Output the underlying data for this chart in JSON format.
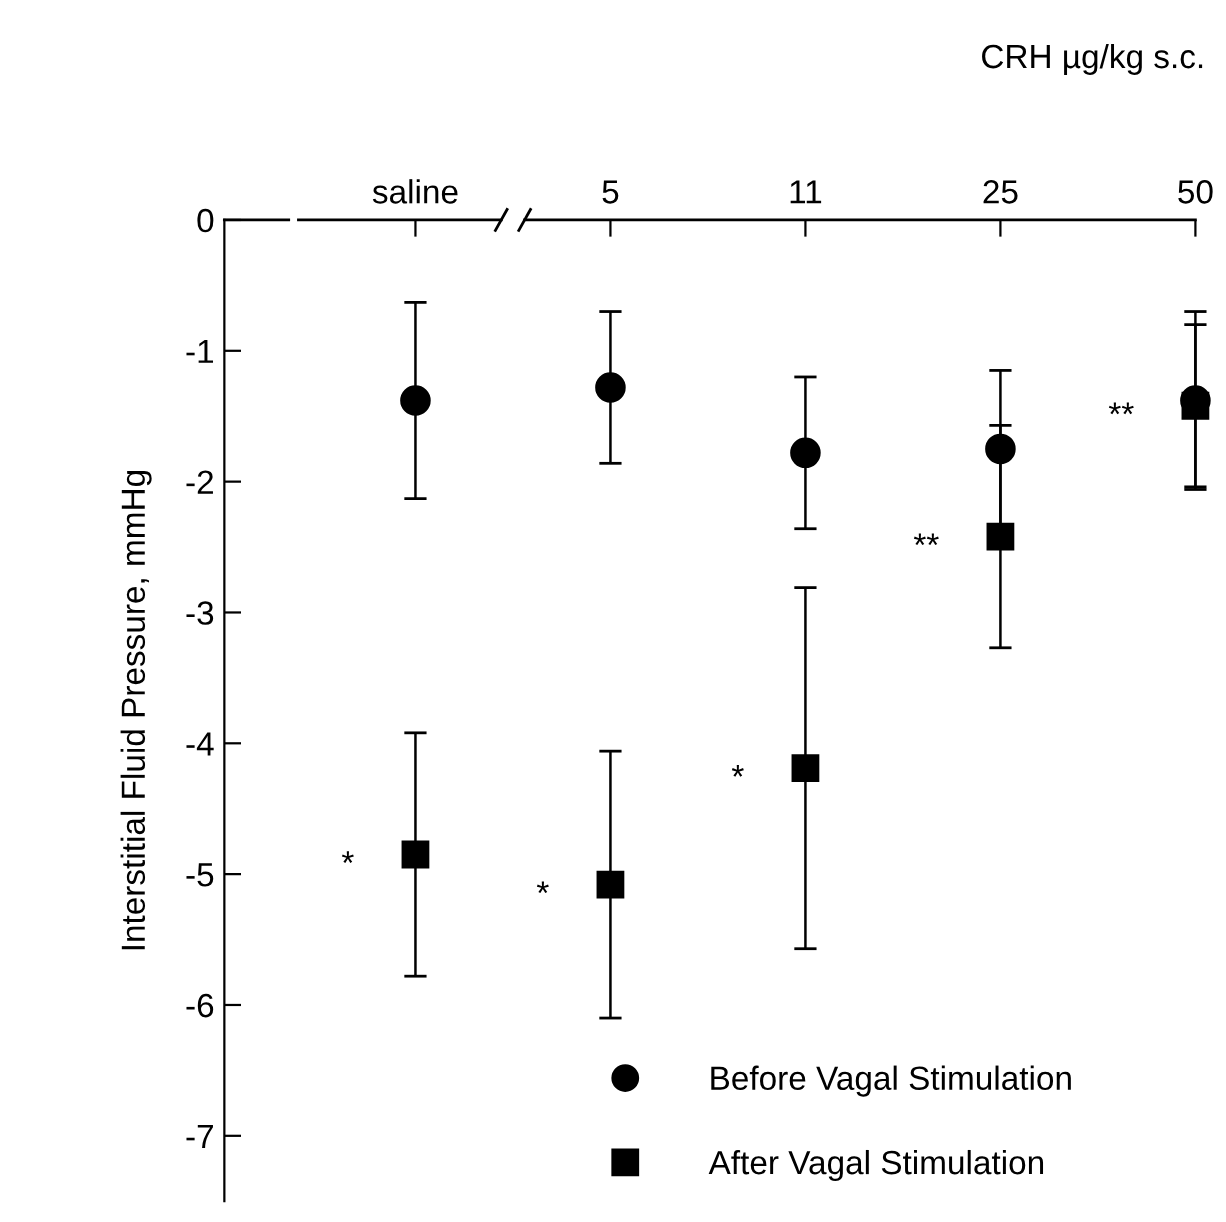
{
  "chart_data": {
    "type": "scatter",
    "xlabel": "CRH µg/kg s.c.",
    "ylabel": "Interstitial Fluid Pressure, mmHg",
    "categories": [
      "saline",
      "5",
      "11",
      "25",
      "50"
    ],
    "series": [
      {
        "name": "Before Vagal Stimulation",
        "color": "#000000",
        "marker": "circle",
        "values": [
          -1.38,
          -1.28,
          -1.78,
          -1.75,
          -1.38
        ],
        "errors": [
          0.75,
          0.58,
          0.58,
          0.6,
          0.68
        ]
      },
      {
        "name": "After Vagal Stimulation",
        "color": "#000000",
        "marker": "square",
        "values": [
          -4.85,
          -5.08,
          -4.19,
          -2.42,
          -1.42
        ],
        "errors": [
          0.93,
          1.02,
          1.38,
          0.85,
          0.62
        ]
      }
    ],
    "annotations": [
      {
        "text": "*",
        "x": "saline",
        "y": -4.85
      },
      {
        "text": "*",
        "x": "5",
        "y": -5.08
      },
      {
        "text": "*",
        "x": "11",
        "y": -4.19
      },
      {
        "text": "**",
        "x": "25",
        "y": -2.42
      },
      {
        "text": "**",
        "x": "50",
        "y": -1.42
      }
    ],
    "ylim": [
      -7.5,
      0
    ],
    "yticks": [
      0,
      -1,
      -2,
      -3,
      -4,
      -5,
      -6,
      -7
    ],
    "grid": false,
    "legend": "bottom"
  }
}
